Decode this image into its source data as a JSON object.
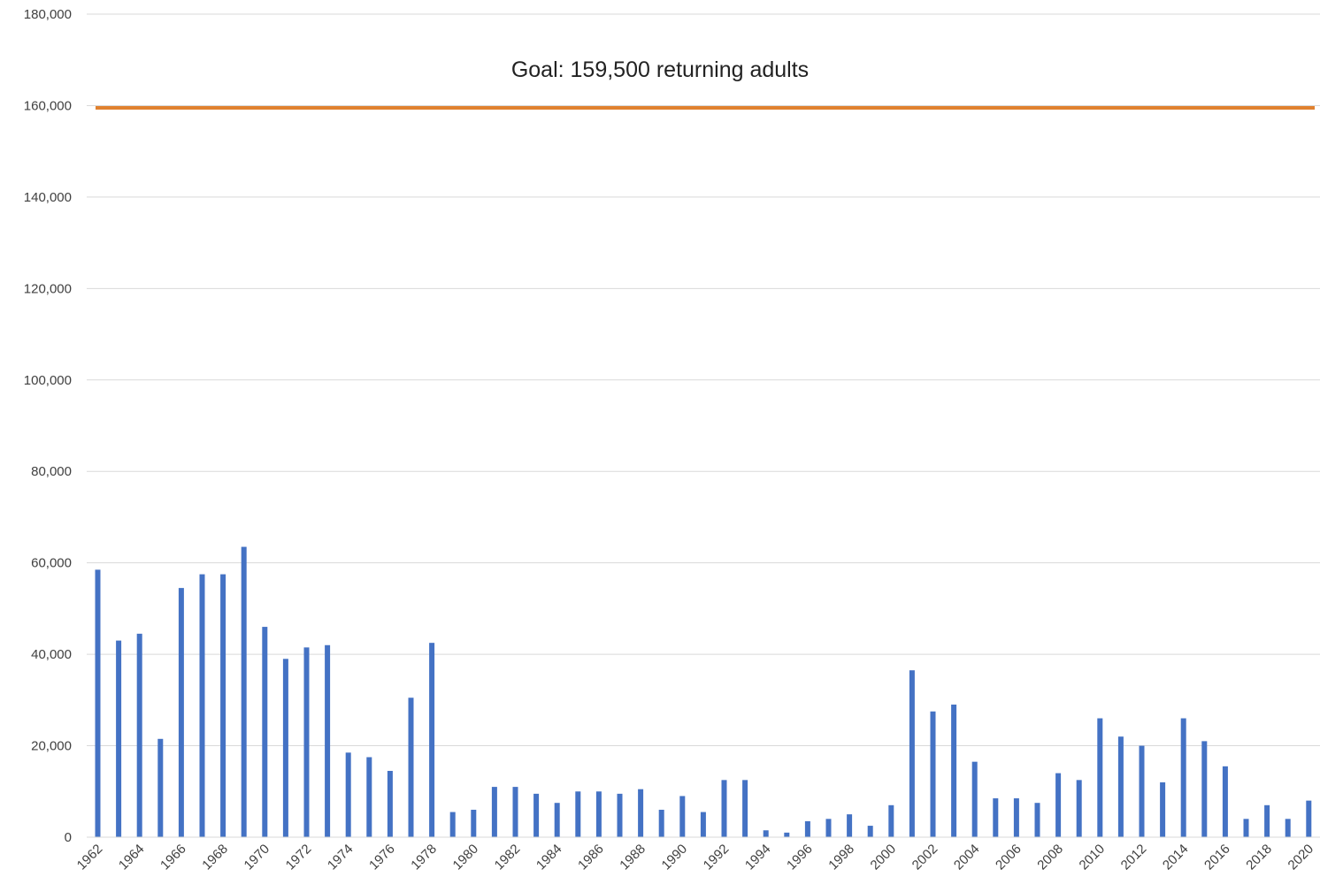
{
  "chart_data": {
    "type": "bar",
    "title": "",
    "xlabel": "",
    "ylabel": "",
    "ylim": [
      0,
      180000
    ],
    "yticks": [
      0,
      20000,
      40000,
      60000,
      80000,
      100000,
      120000,
      140000,
      160000,
      180000
    ],
    "ytick_labels": [
      "0",
      "20,000",
      "40,000",
      "60,000",
      "80,000",
      "100,000",
      "120,000",
      "140,000",
      "160,000",
      "180,000"
    ],
    "grid": true,
    "bar_color": "#4472C4",
    "categories": [
      "1962",
      "1963",
      "1964",
      "1965",
      "1966",
      "1967",
      "1968",
      "1969",
      "1970",
      "1971",
      "1972",
      "1973",
      "1974",
      "1975",
      "1976",
      "1977",
      "1978",
      "1979",
      "1980",
      "1981",
      "1982",
      "1983",
      "1984",
      "1985",
      "1986",
      "1987",
      "1988",
      "1989",
      "1990",
      "1991",
      "1992",
      "1993",
      "1994",
      "1995",
      "1996",
      "1997",
      "1998",
      "1999",
      "2000",
      "2001",
      "2002",
      "2003",
      "2004",
      "2005",
      "2006",
      "2007",
      "2008",
      "2009",
      "2010",
      "2011",
      "2012",
      "2013",
      "2014",
      "2015",
      "2016",
      "2017",
      "2018",
      "2019",
      "2020"
    ],
    "xtick_labels": [
      "1962",
      "1964",
      "1966",
      "1968",
      "1970",
      "1972",
      "1974",
      "1976",
      "1978",
      "1980",
      "1982",
      "1984",
      "1986",
      "1988",
      "1990",
      "1992",
      "1994",
      "1996",
      "1998",
      "2000",
      "2002",
      "2004",
      "2006",
      "2008",
      "2010",
      "2012",
      "2014",
      "2016",
      "2018",
      "2020"
    ],
    "values": [
      58500,
      43000,
      44500,
      21500,
      54500,
      57500,
      57500,
      63500,
      46000,
      39000,
      41500,
      42000,
      18500,
      17500,
      14500,
      30500,
      42500,
      5500,
      6000,
      11000,
      11000,
      9500,
      7500,
      10000,
      10000,
      9500,
      10500,
      6000,
      9000,
      5500,
      12500,
      12500,
      1500,
      1000,
      3500,
      4000,
      5000,
      2500,
      7000,
      36500,
      27500,
      29000,
      16500,
      8500,
      8500,
      7500,
      14000,
      12500,
      26000,
      22000,
      20000,
      12000,
      26000,
      21000,
      15500,
      4000,
      7000,
      4000,
      8000
    ],
    "goal_line": {
      "value": 159500,
      "label": "Goal: 159,500 returning adults",
      "color": "#E0812F"
    }
  }
}
